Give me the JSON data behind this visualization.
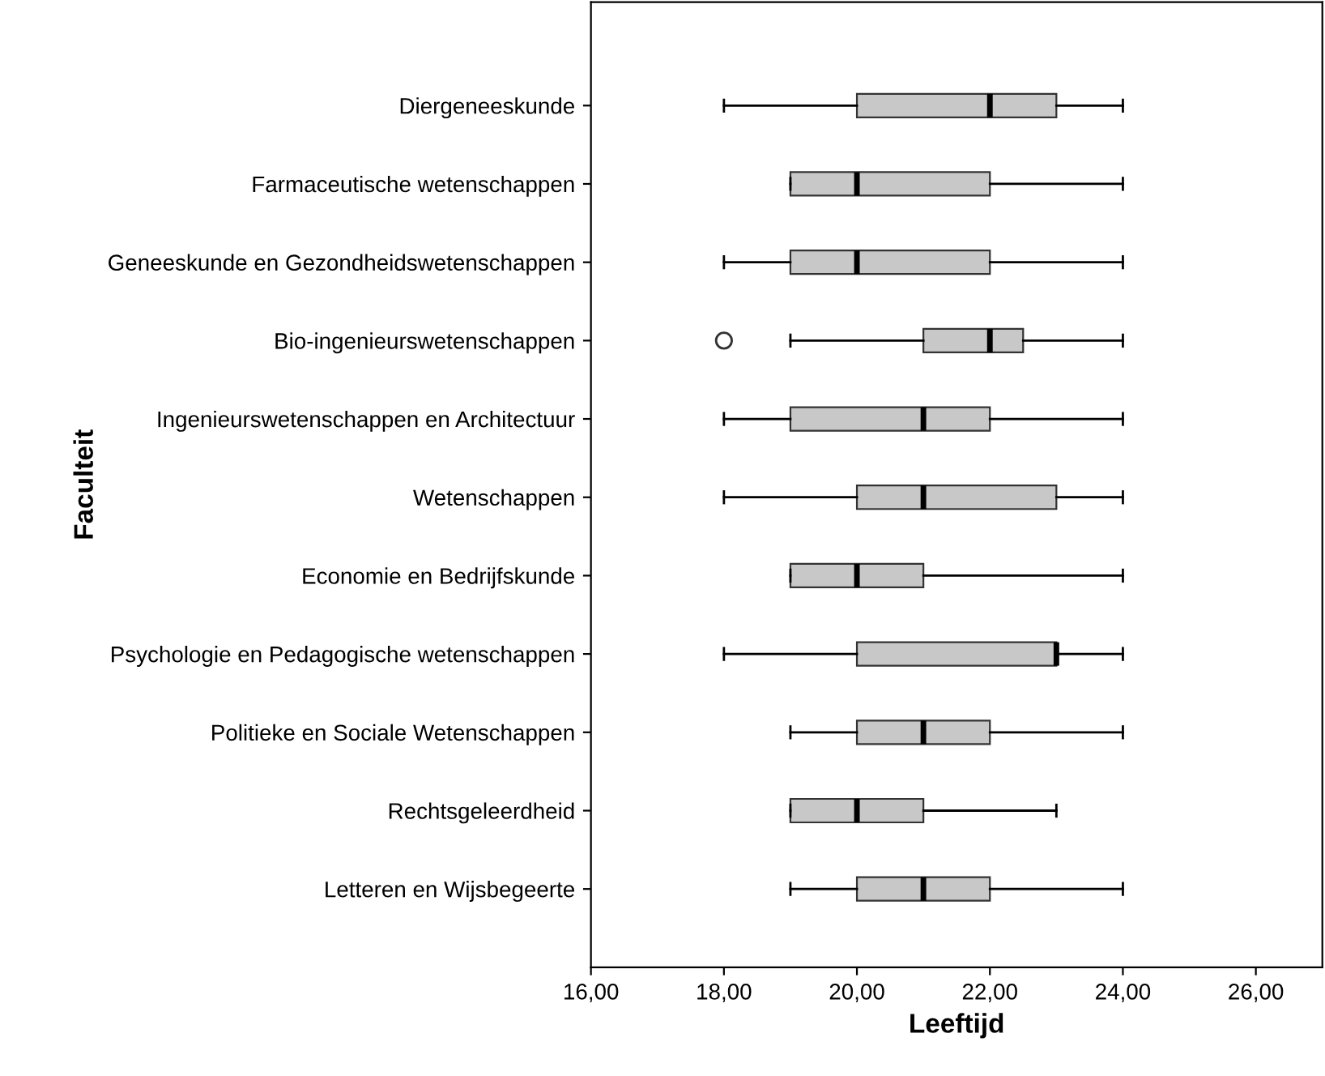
{
  "chart_data": {
    "type": "box",
    "orientation": "horizontal",
    "xlabel": "Leeftijd",
    "ylabel": "Faculteit",
    "color": "#c8c8c8",
    "grid": false,
    "categories": [
      "Diergeneeskunde",
      "Farmaceutische wetenschappen",
      "Geneeskunde en Gezondheidswetenschappen",
      "Bio-ingenieurswetenschappen",
      "Ingenieurswetenschappen en Architectuur",
      "Wetenschappen",
      "Economie en Bedrijfskunde",
      "Psychologie en Pedagogische wetenschappen",
      "Politieke en Sociale Wetenschappen",
      "Rechtsgeleerdheid",
      "Letteren en Wijsbegeerte"
    ],
    "boxes": [
      {
        "low": 18,
        "q1": 20,
        "median": 22,
        "q3": 23,
        "high": 24
      },
      {
        "low": 19,
        "q1": 19,
        "median": 20,
        "q3": 22,
        "high": 24
      },
      {
        "low": 18,
        "q1": 19,
        "median": 20,
        "q3": 22,
        "high": 24
      },
      {
        "low": 19,
        "q1": 21,
        "median": 22,
        "q3": 22.5,
        "high": 24,
        "outliers": [
          18
        ]
      },
      {
        "low": 18,
        "q1": 19,
        "median": 21,
        "q3": 22,
        "high": 24
      },
      {
        "low": 18,
        "q1": 20,
        "median": 21,
        "q3": 23,
        "high": 24
      },
      {
        "low": 19,
        "q1": 19,
        "median": 20,
        "q3": 21,
        "high": 24
      },
      {
        "low": 18,
        "q1": 20,
        "median": 23,
        "q3": 23,
        "high": 24
      },
      {
        "low": 19,
        "q1": 20,
        "median": 21,
        "q3": 22,
        "high": 24
      },
      {
        "low": 19,
        "q1": 19,
        "median": 20,
        "q3": 21,
        "high": 23
      },
      {
        "low": 19,
        "q1": 20,
        "median": 21,
        "q3": 22,
        "high": 24
      }
    ],
    "xlim": [
      16,
      27
    ],
    "xticks": [
      {
        "value": 16,
        "label": "16,00"
      },
      {
        "value": 18,
        "label": "18,00"
      },
      {
        "value": 20,
        "label": "20,00"
      },
      {
        "value": 22,
        "label": "22,00"
      },
      {
        "value": 24,
        "label": "24,00"
      },
      {
        "value": 26,
        "label": "26,00"
      }
    ]
  }
}
